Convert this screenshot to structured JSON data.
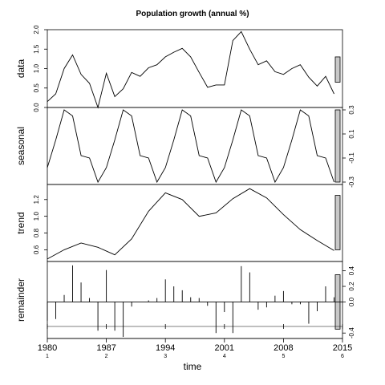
{
  "chart_data": {
    "type": "line",
    "title": "Population growth (annual %)",
    "xlabel": "time",
    "xlim": [
      1980,
      2015
    ],
    "x_ticks": [
      {
        "year": 1980,
        "label": "1980",
        "sub": "1"
      },
      {
        "year": 1987,
        "label": "1987",
        "sub": "2"
      },
      {
        "year": 1994,
        "label": "1994",
        "sub": "3"
      },
      {
        "year": 2001,
        "label": "2001",
        "sub": "4"
      },
      {
        "year": 2008,
        "label": "2008",
        "sub": "5"
      },
      {
        "year": 2015,
        "label": "2015",
        "sub": "6"
      }
    ],
    "panels": [
      {
        "name": "data",
        "style": "line",
        "ylim": [
          0,
          2.0
        ],
        "yticks": [
          0.0,
          0.5,
          1.0,
          1.5,
          2.0
        ],
        "tick_labels": [
          "0.0",
          "0.5",
          "1.0",
          "1.5",
          "2.0"
        ],
        "tick_side": "left",
        "label_side": "left",
        "bar_range": [
          0.65,
          1.3
        ],
        "x": [
          1980,
          1981,
          1982,
          1983,
          1984,
          1985,
          1986,
          1987,
          1988,
          1989,
          1990,
          1991,
          1992,
          1993,
          1994,
          1995,
          1996,
          1997,
          1998,
          1999,
          2000,
          2001,
          2002,
          2003,
          2004,
          2005,
          2006,
          2007,
          2008,
          2009,
          2010,
          2011,
          2012,
          2013,
          2014
        ],
        "values": [
          0.15,
          0.35,
          1.0,
          1.35,
          0.85,
          0.62,
          0.0,
          0.88,
          0.28,
          0.48,
          0.9,
          0.8,
          1.02,
          1.1,
          1.3,
          1.42,
          1.52,
          1.3,
          0.9,
          0.52,
          0.58,
          0.58,
          1.72,
          1.95,
          1.5,
          1.1,
          1.2,
          0.92,
          0.85,
          1.0,
          1.1,
          0.78,
          0.55,
          0.8,
          0.35
        ]
      },
      {
        "name": "seasonal",
        "style": "line",
        "ylim": [
          -0.32,
          0.32
        ],
        "yticks": [
          -0.3,
          -0.1,
          0.1,
          0.3
        ],
        "tick_labels": [
          "-0.3",
          "-0.1",
          "0.1",
          "0.3"
        ],
        "tick_side": "right",
        "label_side": "left",
        "bar_range": [
          -0.3,
          0.3
        ],
        "x": [
          1980,
          1981,
          1982,
          1983,
          1984,
          1985,
          1986,
          1987,
          1988,
          1989,
          1990,
          1991,
          1992,
          1993,
          1994,
          1995,
          1996,
          1997,
          1998,
          1999,
          2000,
          2001,
          2002,
          2003,
          2004,
          2005,
          2006,
          2007,
          2008,
          2009,
          2010,
          2011,
          2012,
          2013,
          2014
        ],
        "values": [
          -0.18,
          0.05,
          0.3,
          0.25,
          -0.08,
          -0.1,
          -0.3,
          -0.18,
          0.05,
          0.3,
          0.25,
          -0.08,
          -0.1,
          -0.3,
          -0.18,
          0.05,
          0.3,
          0.25,
          -0.08,
          -0.1,
          -0.3,
          -0.18,
          0.05,
          0.3,
          0.25,
          -0.08,
          -0.1,
          -0.3,
          -0.18,
          0.05,
          0.3,
          0.25,
          -0.08,
          -0.1,
          -0.3
        ]
      },
      {
        "name": "trend",
        "style": "line",
        "ylim": [
          0.46,
          1.38
        ],
        "yticks": [
          0.6,
          0.8,
          1.0,
          1.2
        ],
        "tick_labels": [
          "0.6",
          "0.8",
          "1.0",
          "1.2"
        ],
        "tick_side": "left",
        "label_side": "left",
        "bar_range": [
          0.6,
          1.25
        ],
        "x": [
          1980,
          1982,
          1984,
          1986,
          1988,
          1990,
          1992,
          1994,
          1996,
          1998,
          2000,
          2002,
          2004,
          2006,
          2008,
          2010,
          2012,
          2014
        ],
        "values": [
          0.49,
          0.6,
          0.68,
          0.63,
          0.54,
          0.73,
          1.06,
          1.28,
          1.2,
          1.0,
          1.04,
          1.21,
          1.33,
          1.22,
          1.02,
          0.84,
          0.71,
          0.59
        ]
      },
      {
        "name": "remainder",
        "style": "spikes",
        "ylim": [
          -0.47,
          0.52
        ],
        "yticks": [
          -0.4,
          0.0,
          0.2,
          0.4
        ],
        "tick_labels": [
          "-0.4",
          "0.0",
          "0.2",
          "0.4"
        ],
        "tick_side": "right",
        "label_side": "left",
        "bar_range": [
          -0.35,
          0.35
        ],
        "x": [
          1980,
          1981,
          1982,
          1983,
          1984,
          1985,
          1986,
          1987,
          1988,
          1989,
          1990,
          1991,
          1992,
          1993,
          1994,
          1995,
          1996,
          1997,
          1998,
          1999,
          2000,
          2001,
          2002,
          2003,
          2004,
          2005,
          2006,
          2007,
          2008,
          2009,
          2010,
          2011,
          2012,
          2013,
          2014
        ],
        "values": [
          -0.24,
          -0.22,
          0.09,
          0.47,
          0.25,
          0.05,
          -0.37,
          0.41,
          -0.37,
          -0.45,
          -0.06,
          0.0,
          0.02,
          0.05,
          0.29,
          0.2,
          0.15,
          0.06,
          0.05,
          -0.05,
          -0.4,
          -0.13,
          -0.4,
          0.46,
          0.38,
          -0.1,
          -0.07,
          0.08,
          0.14,
          -0.03,
          -0.03,
          -0.28,
          -0.12,
          0.2,
          0.06
        ]
      }
    ]
  }
}
